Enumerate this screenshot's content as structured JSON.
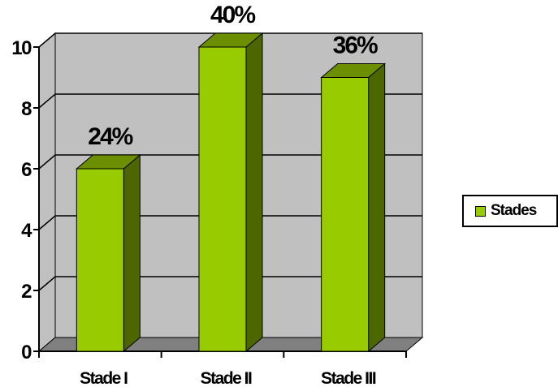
{
  "chart_data": {
    "type": "bar",
    "categories": [
      "Stade I",
      "Stade II",
      "Stade III"
    ],
    "series": [
      {
        "name": "Stades",
        "values": [
          6,
          10,
          9
        ]
      }
    ],
    "data_labels": [
      "24%",
      "40%",
      "36%"
    ],
    "yticks": [
      "0",
      "2",
      "4",
      "6",
      "8",
      "10"
    ],
    "ylim": [
      0,
      10
    ],
    "grid": true,
    "legend_position": "right",
    "colors": {
      "bar_front": "#99cc00",
      "bar_side": "#4d6600",
      "bar_top": "#6b8f00",
      "plot_back": "#c0c0c0",
      "plot_floor": "#808080",
      "gridline": "#000000"
    }
  },
  "legend": {
    "label": "Stades"
  }
}
